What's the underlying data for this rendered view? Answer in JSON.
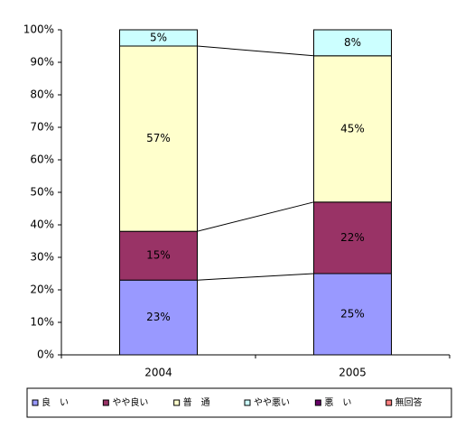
{
  "chart_data": {
    "type": "stacked_bar_percent",
    "categories": [
      "2004",
      "2005"
    ],
    "series": [
      {
        "name": "良　い",
        "color": "#9999ff",
        "values": [
          23,
          25
        ],
        "value_labels": [
          "23%",
          "25%"
        ]
      },
      {
        "name": "やや良い",
        "color": "#993366",
        "values": [
          15,
          22
        ],
        "value_labels": [
          "15%",
          "22%"
        ]
      },
      {
        "name": "普　通",
        "color": "#ffffcc",
        "values": [
          57,
          45
        ],
        "value_labels": [
          "57%",
          "45%"
        ]
      },
      {
        "name": "やや悪い",
        "color": "#ccffff",
        "values": [
          5,
          8
        ],
        "value_labels": [
          "5%",
          "8%"
        ]
      },
      {
        "name": "悪　い",
        "color": "#660066",
        "values": [
          0,
          0
        ],
        "value_labels": [
          null,
          null
        ]
      },
      {
        "name": "無回答",
        "color": "#ff8080",
        "values": [
          0,
          0
        ],
        "value_labels": [
          null,
          null
        ]
      }
    ],
    "ylim": [
      0,
      100
    ],
    "yticks": [
      {
        "value": 0,
        "label": "0%"
      },
      {
        "value": 10,
        "label": "10%"
      },
      {
        "value": 20,
        "label": "20%"
      },
      {
        "value": 30,
        "label": "30%"
      },
      {
        "value": 40,
        "label": "40%"
      },
      {
        "value": 50,
        "label": "50%"
      },
      {
        "value": 60,
        "label": "60%"
      },
      {
        "value": 70,
        "label": "70%"
      },
      {
        "value": 80,
        "label": "80%"
      },
      {
        "value": 90,
        "label": "90%"
      },
      {
        "value": 100,
        "label": "100%"
      }
    ],
    "series_lines": true,
    "legend": "bottom"
  }
}
